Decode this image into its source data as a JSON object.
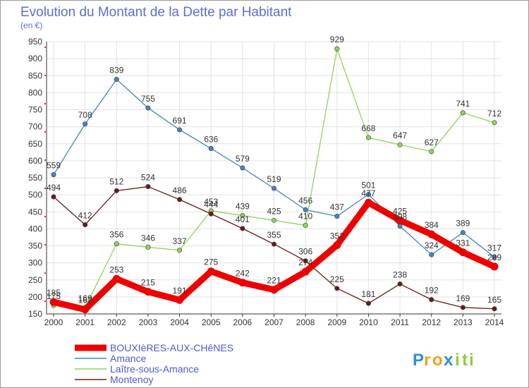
{
  "chart_data": {
    "type": "line",
    "title": "Evolution du Montant de la Dette par Habitant",
    "subtitle": "(en €)",
    "x": [
      "2000",
      "2001",
      "2002",
      "2003",
      "2004",
      "2005",
      "2006",
      "2007",
      "2008",
      "2009",
      "2010",
      "2011",
      "2012",
      "2013",
      "2014"
    ],
    "ylim": [
      150,
      950
    ],
    "yticks": [
      150,
      200,
      250,
      300,
      350,
      400,
      450,
      500,
      550,
      600,
      650,
      700,
      750,
      800,
      850,
      900,
      950
    ],
    "grid": true,
    "legend_position": "bottom-left",
    "series": [
      {
        "name": "BOUXIèRES-AUX-CHêNES",
        "color": "#ee0000",
        "values": [
          185,
          163,
          253,
          215,
          191,
          275,
          242,
          221,
          274,
          352,
          477,
          425,
          384,
          331,
          289
        ]
      },
      {
        "name": "Amance",
        "color": "#3f86c8",
        "values": [
          559,
          708,
          839,
          755,
          691,
          636,
          579,
          519,
          456,
          437,
          501,
          408,
          324,
          389,
          317
        ]
      },
      {
        "name": "Laître-sous-Amance",
        "color": "#8fd45a",
        "values": [
          175,
          169,
          356,
          346,
          337,
          453,
          439,
          425,
          410,
          929,
          668,
          647,
          627,
          741,
          712
        ]
      },
      {
        "name": "Montenoy",
        "color": "#6b1a1a",
        "values": [
          494,
          412,
          512,
          524,
          486,
          444,
          401,
          355,
          306,
          225,
          181,
          238,
          192,
          169,
          165
        ]
      }
    ]
  },
  "brand": {
    "letters": [
      "P",
      "r",
      "o",
      "x",
      "i",
      "t",
      "i"
    ],
    "colors": [
      "#2f8fd6",
      "#f0a020",
      "#f0a020",
      "#2f8fd6",
      "#8ccc3c",
      "#8ccc3c",
      "#8ccc3c"
    ]
  }
}
